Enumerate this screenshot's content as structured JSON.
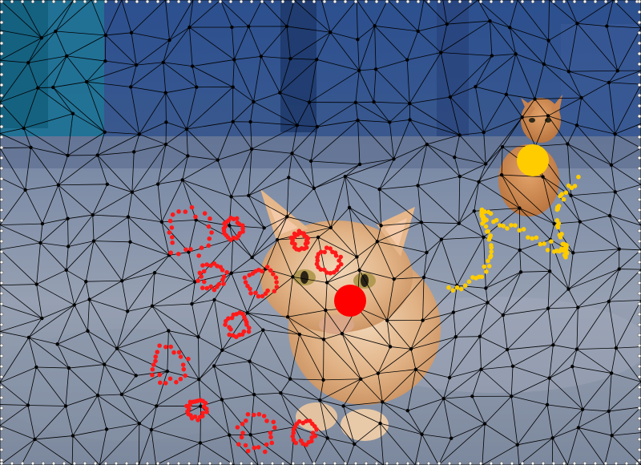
{
  "image": {
    "subject": "cats-on-street-with-triangle-mesh-overlay",
    "elements": [
      "background-wall",
      "ground",
      "cat-main",
      "cat-small",
      "triangle-mesh",
      "red-point-cluster",
      "yellow-point-cluster",
      "red-marker-dot",
      "yellow-marker-dot"
    ]
  },
  "colors": {
    "wall": "#2a4f8f",
    "wall_dark": "#1b3466",
    "door_cyan": "#1d7a98",
    "ground": "#8d98ab",
    "ground_dark": "#5b6780",
    "cat_fur": "#e4b68a",
    "cat_orange": "#d9955b",
    "mesh_edge": "#000000",
    "mesh_node": "#000000",
    "red_points": "#ff1a1a",
    "yellow_points": "#ffcc00",
    "border_dot": "#ffffff"
  }
}
